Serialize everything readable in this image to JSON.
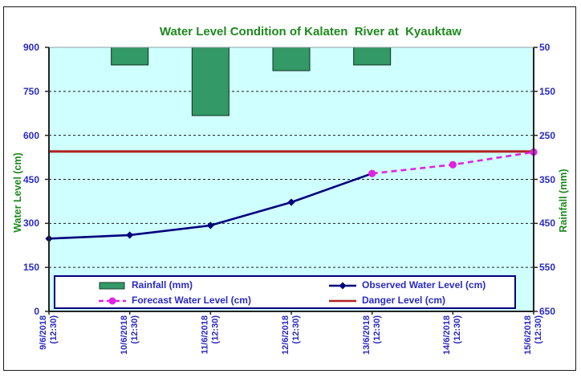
{
  "page": {
    "title": "Water Level Condition of Kalaten  River at  Kyauktaw"
  },
  "colors": {
    "title_green": "#1E8A1E",
    "tick_label_blue": "#2A2AC4",
    "plot_bg": "#CFFFFF",
    "bar_green": "#339966",
    "bar_border": "#173F2A",
    "observed_navy": "#00007D",
    "forecast_magenta": "#E221E2",
    "danger_red": "#B22222",
    "legend_border_navy": "#00007D",
    "axis_line": "#222222",
    "gridline": "#1a1a1a"
  },
  "chart_data": {
    "type": "combo-bar-line",
    "title": "Water Level Condition of Kalaten  River at  Kyauktaw",
    "x_labels": [
      {
        "date": "9/6/2018",
        "time": "(12:30)"
      },
      {
        "date": "10/6/2018",
        "time": "(12:30)"
      },
      {
        "date": "11/6/2018",
        "time": "(12:30)"
      },
      {
        "date": "12/6/2018",
        "time": "(12:30)"
      },
      {
        "date": "13/6/2018",
        "time": "(12:30)"
      },
      {
        "date": "14/6/2018",
        "time": "(12:30)"
      },
      {
        "date": "15/6/2018",
        "time": "(12:30)"
      }
    ],
    "series": [
      {
        "name": "Rainfall (mm)",
        "type": "bar",
        "axis": "right",
        "values": [
          0,
          90,
          205,
          103,
          90,
          0,
          0
        ]
      },
      {
        "name": "Observed Water Level (cm)",
        "type": "line",
        "marker": "diamond",
        "axis": "left",
        "values": [
          248,
          260,
          293,
          372,
          470,
          null,
          null
        ]
      },
      {
        "name": "Forecast Water Level (cm)",
        "type": "line",
        "style": "dashed",
        "marker": "circle",
        "axis": "left",
        "values": [
          null,
          null,
          null,
          null,
          470,
          500,
          543
        ]
      },
      {
        "name": "Danger Level (cm)",
        "type": "hline",
        "axis": "left",
        "value": 545
      }
    ],
    "left_axis": {
      "title": "Water Level (cm)",
      "min": 0,
      "max": 900,
      "ticks": [
        900,
        750,
        600,
        450,
        300,
        150,
        0
      ]
    },
    "right_axis": {
      "title": "Rainfall (mm)",
      "min": 50,
      "max": 650,
      "reversed": true,
      "ticks": [
        50,
        150,
        250,
        350,
        450,
        550,
        650
      ]
    },
    "gridlines_left_values": [
      750,
      600,
      450,
      300,
      150
    ],
    "legend_position": "bottom-inside"
  }
}
